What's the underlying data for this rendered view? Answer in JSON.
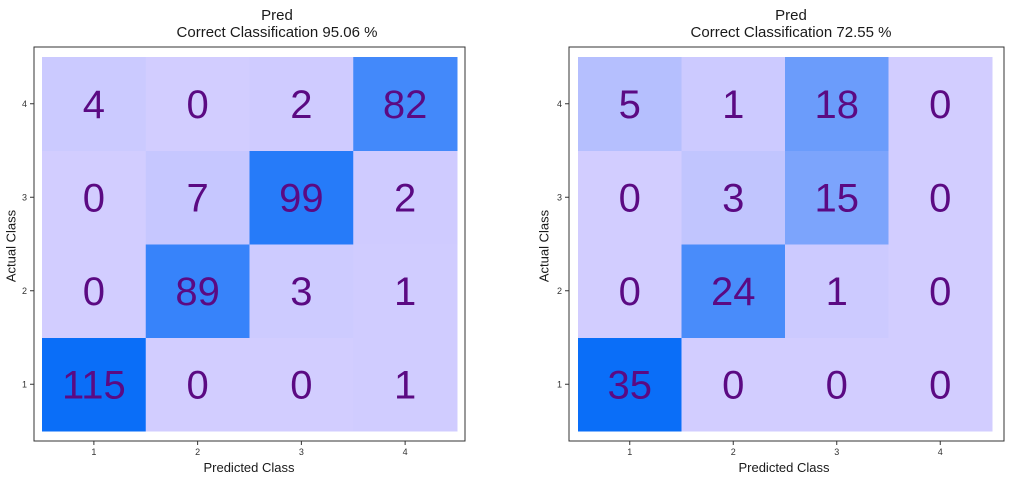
{
  "chart_data": [
    {
      "type": "heatmap",
      "title": "Pred",
      "subtitle": "Correct Classification 95.06 %",
      "xlabel": "Predicted Class",
      "ylabel": "Actual Class",
      "x_categories": [
        "1",
        "2",
        "3",
        "4"
      ],
      "y_categories": [
        "1",
        "2",
        "3",
        "4"
      ],
      "values": [
        [
          115,
          0,
          0,
          1
        ],
        [
          0,
          89,
          3,
          1
        ],
        [
          0,
          7,
          99,
          2
        ],
        [
          4,
          0,
          2,
          82
        ]
      ],
      "grid": false
    },
    {
      "type": "heatmap",
      "title": "Pred",
      "subtitle": "Correct Classification 72.55 %",
      "xlabel": "Predicted Class",
      "ylabel": "Actual Class",
      "x_categories": [
        "1",
        "2",
        "3",
        "4"
      ],
      "y_categories": [
        "1",
        "2",
        "3",
        "4"
      ],
      "values": [
        [
          35,
          0,
          0,
          0
        ],
        [
          0,
          24,
          1,
          0
        ],
        [
          0,
          3,
          15,
          0
        ],
        [
          5,
          1,
          18,
          0
        ]
      ],
      "grid": false
    }
  ],
  "colors": {
    "low": "#d2cdff",
    "high": "#0a6ef8",
    "text": "#5b0a83"
  }
}
